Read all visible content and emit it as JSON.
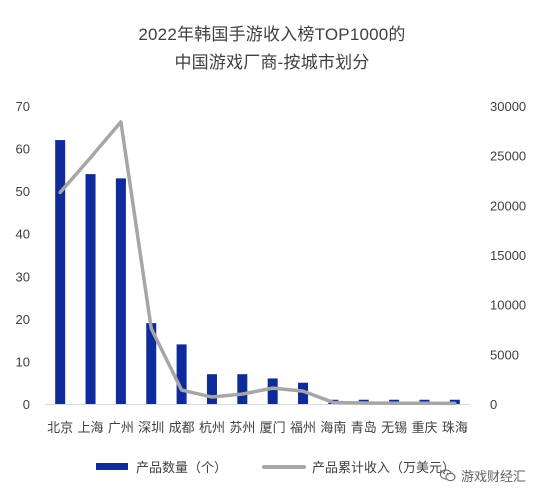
{
  "chart_data": {
    "type": "bar",
    "title": "2022年韩国手游收入榜TOP1000的",
    "subtitle": "中国游戏厂商-按城市划分",
    "categories": [
      "北京",
      "上海",
      "广州",
      "深圳",
      "成都",
      "杭州",
      "苏州",
      "厦门",
      "福州",
      "海南",
      "青岛",
      "无锡",
      "重庆",
      "珠海"
    ],
    "series": [
      {
        "name": "产品数量（个）",
        "type": "bar",
        "axis": "left",
        "color": "#0f2a9a",
        "values": [
          62,
          54,
          53,
          19,
          14,
          7,
          7,
          6,
          5,
          1,
          1,
          1,
          1,
          1
        ]
      },
      {
        "name": "产品累计收入（万美元）",
        "type": "line",
        "axis": "right",
        "color": "#a6a6a6",
        "values": [
          21300,
          24800,
          28400,
          7600,
          1400,
          700,
          1000,
          1600,
          1300,
          150,
          100,
          80,
          80,
          60
        ]
      }
    ],
    "y_left": {
      "min": 0,
      "max": 70,
      "ticks": [
        0,
        10,
        20,
        30,
        40,
        50,
        60,
        70
      ]
    },
    "y_right": {
      "min": 0,
      "max": 30000,
      "ticks": [
        0,
        5000,
        10000,
        15000,
        20000,
        25000,
        30000
      ]
    },
    "grid": false,
    "legend_position": "bottom"
  },
  "watermark": {
    "text": "游戏财经汇",
    "icon": "wechat-icon"
  }
}
